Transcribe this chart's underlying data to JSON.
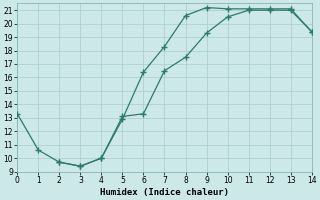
{
  "line1_x": [
    0,
    1,
    2,
    3,
    4,
    5,
    6,
    7,
    8,
    9,
    10,
    11,
    12,
    13,
    14
  ],
  "line1_y": [
    13.3,
    10.6,
    9.7,
    9.4,
    10.0,
    12.9,
    16.4,
    18.3,
    20.6,
    21.2,
    21.1,
    21.1,
    21.1,
    21.1,
    19.4
  ],
  "line2_x": [
    2,
    3,
    4,
    5,
    6,
    7,
    8,
    9,
    10,
    11,
    12,
    13,
    14
  ],
  "line2_y": [
    9.7,
    9.4,
    10.0,
    13.1,
    13.3,
    16.5,
    17.5,
    19.3,
    20.5,
    21.0,
    21.0,
    21.0,
    19.4
  ],
  "color": "#2d7a6e",
  "xlabel": "Humidex (Indice chaleur)",
  "xlim": [
    0,
    14
  ],
  "ylim": [
    9,
    21.5
  ],
  "xticks": [
    0,
    1,
    2,
    3,
    4,
    5,
    6,
    7,
    8,
    9,
    10,
    11,
    12,
    13,
    14
  ],
  "yticks": [
    9,
    10,
    11,
    12,
    13,
    14,
    15,
    16,
    17,
    18,
    19,
    20,
    21
  ],
  "bg_color": "#cce8e8",
  "grid_color": "#a8cccc"
}
